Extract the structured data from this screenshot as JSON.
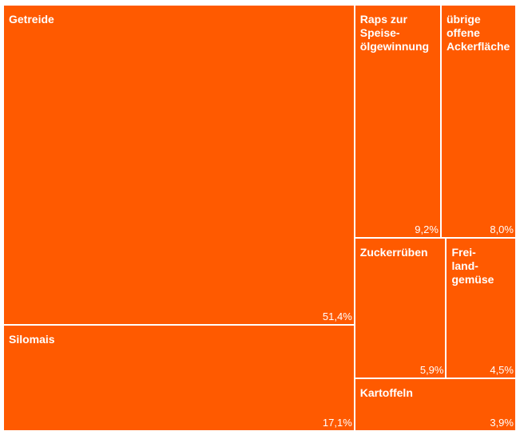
{
  "chart_data": {
    "type": "treemap",
    "title": "",
    "unit": "%",
    "color": "#ff5a00",
    "border_color": "#ffffff",
    "items": [
      {
        "name": "Getreide",
        "label": "Getreide",
        "value": 51.4,
        "value_label": "51,4%"
      },
      {
        "name": "Silomais",
        "label": "Silomais",
        "value": 17.1,
        "value_label": "17,1%"
      },
      {
        "name": "Raps zur Speiseölgewinnung",
        "label": "Raps zur\nSpeise-\nölgewinnung",
        "value": 9.2,
        "value_label": "9,2%"
      },
      {
        "name": "übrige offene Ackerfläche",
        "label": "übrige\noffene\nAckerfläche",
        "value": 8.0,
        "value_label": "8,0%"
      },
      {
        "name": "Zuckerrüben",
        "label": "Zuckerrüben",
        "value": 5.9,
        "value_label": "5,9%"
      },
      {
        "name": "Freilandgemüse",
        "label": "Frei-\nland-\ngemüse",
        "value": 4.5,
        "value_label": "4,5%"
      },
      {
        "name": "Kartoffeln",
        "label": "Kartoffeln",
        "value": 3.9,
        "value_label": "3,9%"
      }
    ]
  }
}
